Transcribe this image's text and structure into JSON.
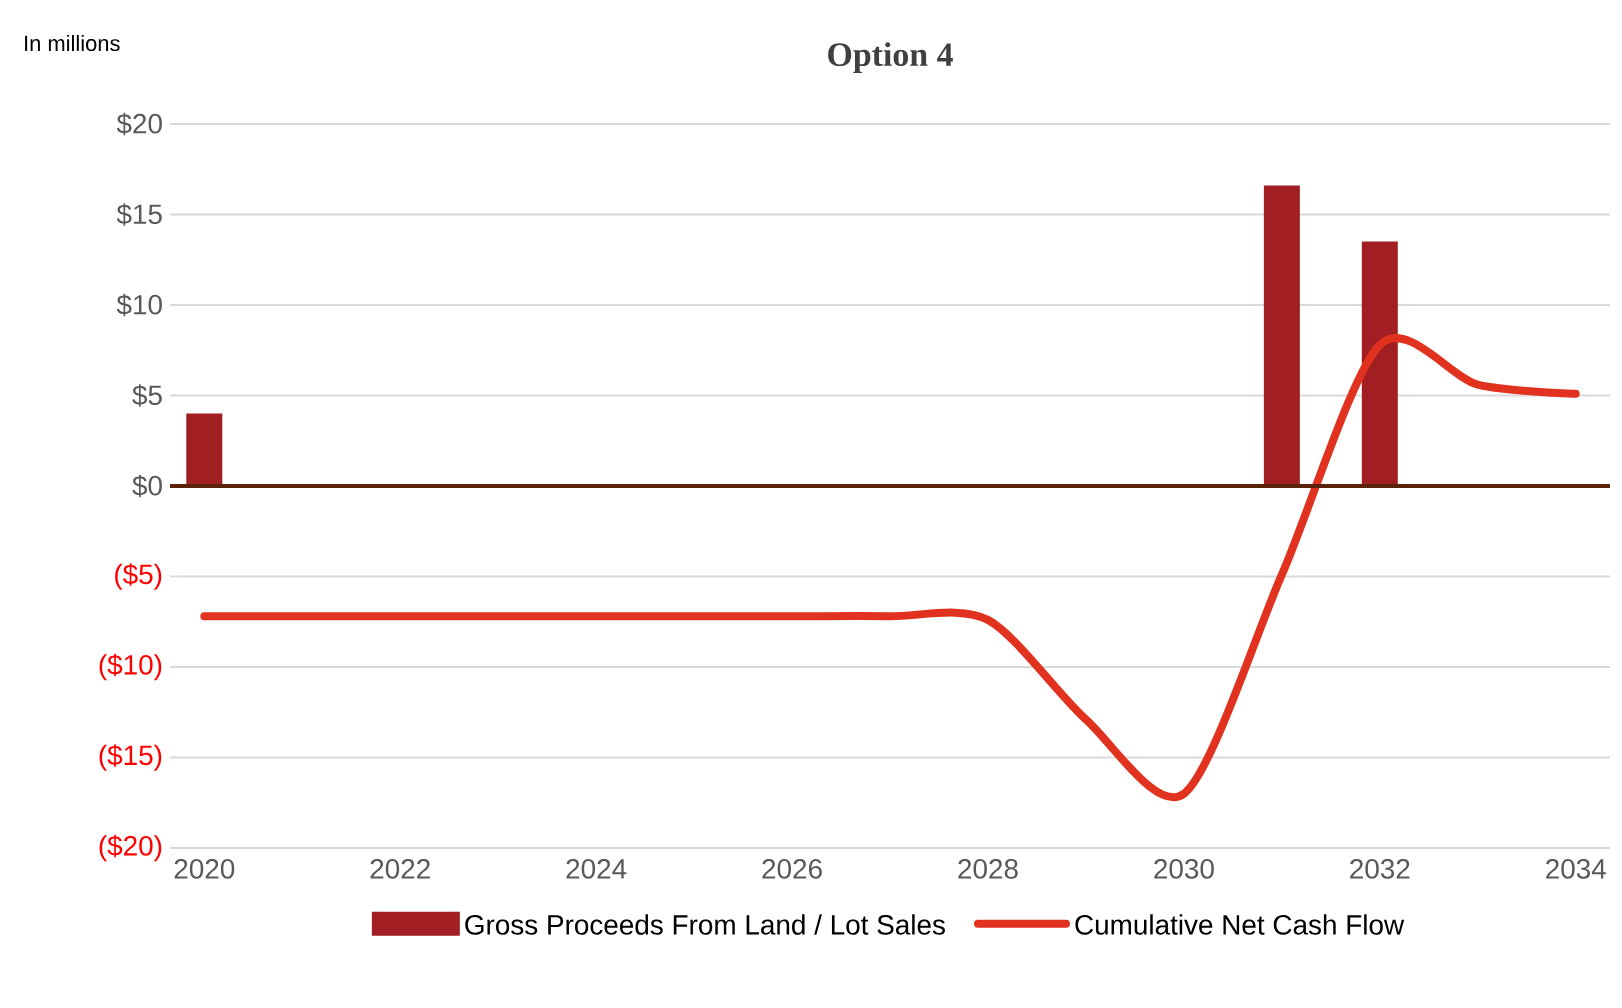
{
  "chart_data": {
    "type": "line",
    "title": "Option 4",
    "annotations": [
      "In millions"
    ],
    "x": [
      2020,
      2021,
      2022,
      2023,
      2024,
      2025,
      2026,
      2027,
      2028,
      2029,
      2030,
      2031,
      2032,
      2033,
      2034
    ],
    "series": [
      {
        "name": "Gross Proceeds From Land / Lot Sales",
        "type": "bar",
        "color": "#a11f22",
        "values": [
          4.0,
          null,
          null,
          null,
          null,
          null,
          null,
          null,
          null,
          null,
          null,
          16.6,
          13.5,
          null,
          null
        ]
      },
      {
        "name": "Cumulative Net Cash Flow",
        "color": "#e0321e",
        "values": [
          -7.2,
          -7.2,
          -7.2,
          -7.2,
          -7.2,
          -7.2,
          -7.2,
          -7.2,
          -7.4,
          -12.9,
          -17.0,
          -4.9,
          7.8,
          5.6,
          5.1
        ]
      }
    ],
    "xlim": [
      2019.65,
      2034.35
    ],
    "ylim": [
      -20,
      20
    ],
    "xticks": [
      2020,
      2022,
      2024,
      2026,
      2028,
      2030,
      2032,
      2034
    ],
    "yticks": [
      {
        "value": -20,
        "label": "($20)"
      },
      {
        "value": -15,
        "label": "($15)"
      },
      {
        "value": -10,
        "label": "($10)"
      },
      {
        "value": -5,
        "label": "($5)"
      },
      {
        "value": 0,
        "label": "$0"
      },
      {
        "value": 5,
        "label": "$5"
      },
      {
        "value": 10,
        "label": "$10"
      },
      {
        "value": 15,
        "label": "$15"
      },
      {
        "value": 20,
        "label": "$20"
      }
    ],
    "ref_lines": [
      {
        "axis": "y",
        "value": 0,
        "color": "#5a2208"
      }
    ],
    "grid": "y",
    "legend": "bottom",
    "marker": "none",
    "line_style": "solid"
  }
}
